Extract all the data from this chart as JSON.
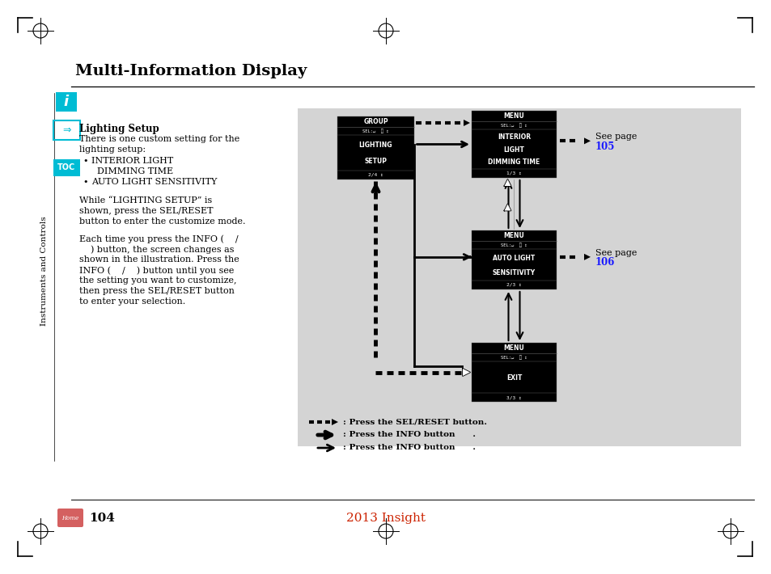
{
  "title": "Multi-Information Display",
  "page_num": "104",
  "footer_text": "2013 Insight",
  "bg_color": "#ffffff",
  "diagram_bg": "#d4d4d4",
  "cyan_color": "#00bcd4",
  "blue_color": "#1a1aff",
  "red_color": "#cc2200",
  "box1_title": "GROUP",
  "box1_body": [
    "LIGHTING",
    "SETUP"
  ],
  "box1_footer": "2/4",
  "box2_title": "MENU",
  "box2_body": [
    "INTERIOR",
    "LIGHT",
    "DIMMING TIME"
  ],
  "box2_footer": "1/3",
  "box3_title": "MENU",
  "box3_body": [
    "AUTO LIGHT",
    "SENSITIVITY"
  ],
  "box3_footer": "2/3",
  "box4_title": "MENU",
  "box4_body": [
    "EXIT"
  ],
  "box4_footer": "3/3",
  "see_page_1": "105",
  "see_page_2": "106",
  "legend1": ": Press the SEL/RESET button.",
  "legend2": ": Press the INFO button      .",
  "legend3": ": Press the INFO button      ."
}
